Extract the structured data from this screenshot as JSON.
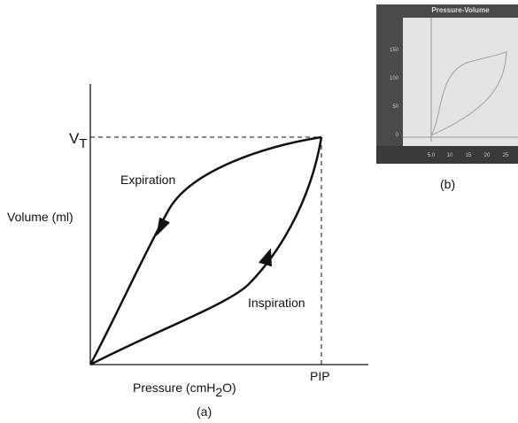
{
  "panel_a": {
    "volume_tick": {
      "main": "V",
      "sub": "T"
    },
    "pressure_tick": "PIP",
    "expiration": "Expiration",
    "inspiration": "Inspiration",
    "y_axis_label": "Volume (ml)",
    "x_axis_label": {
      "before": "Pressure (cmH",
      "sub": "2",
      "after": "O)"
    },
    "caption": "(a)"
  },
  "panel_b": {
    "title": "Pressure-Volume",
    "y_labels": [
      "150",
      "100",
      "50",
      "0"
    ],
    "x_labels": [
      "5.0",
      "10",
      "15",
      "20",
      "25"
    ],
    "caption": "(b)"
  }
}
